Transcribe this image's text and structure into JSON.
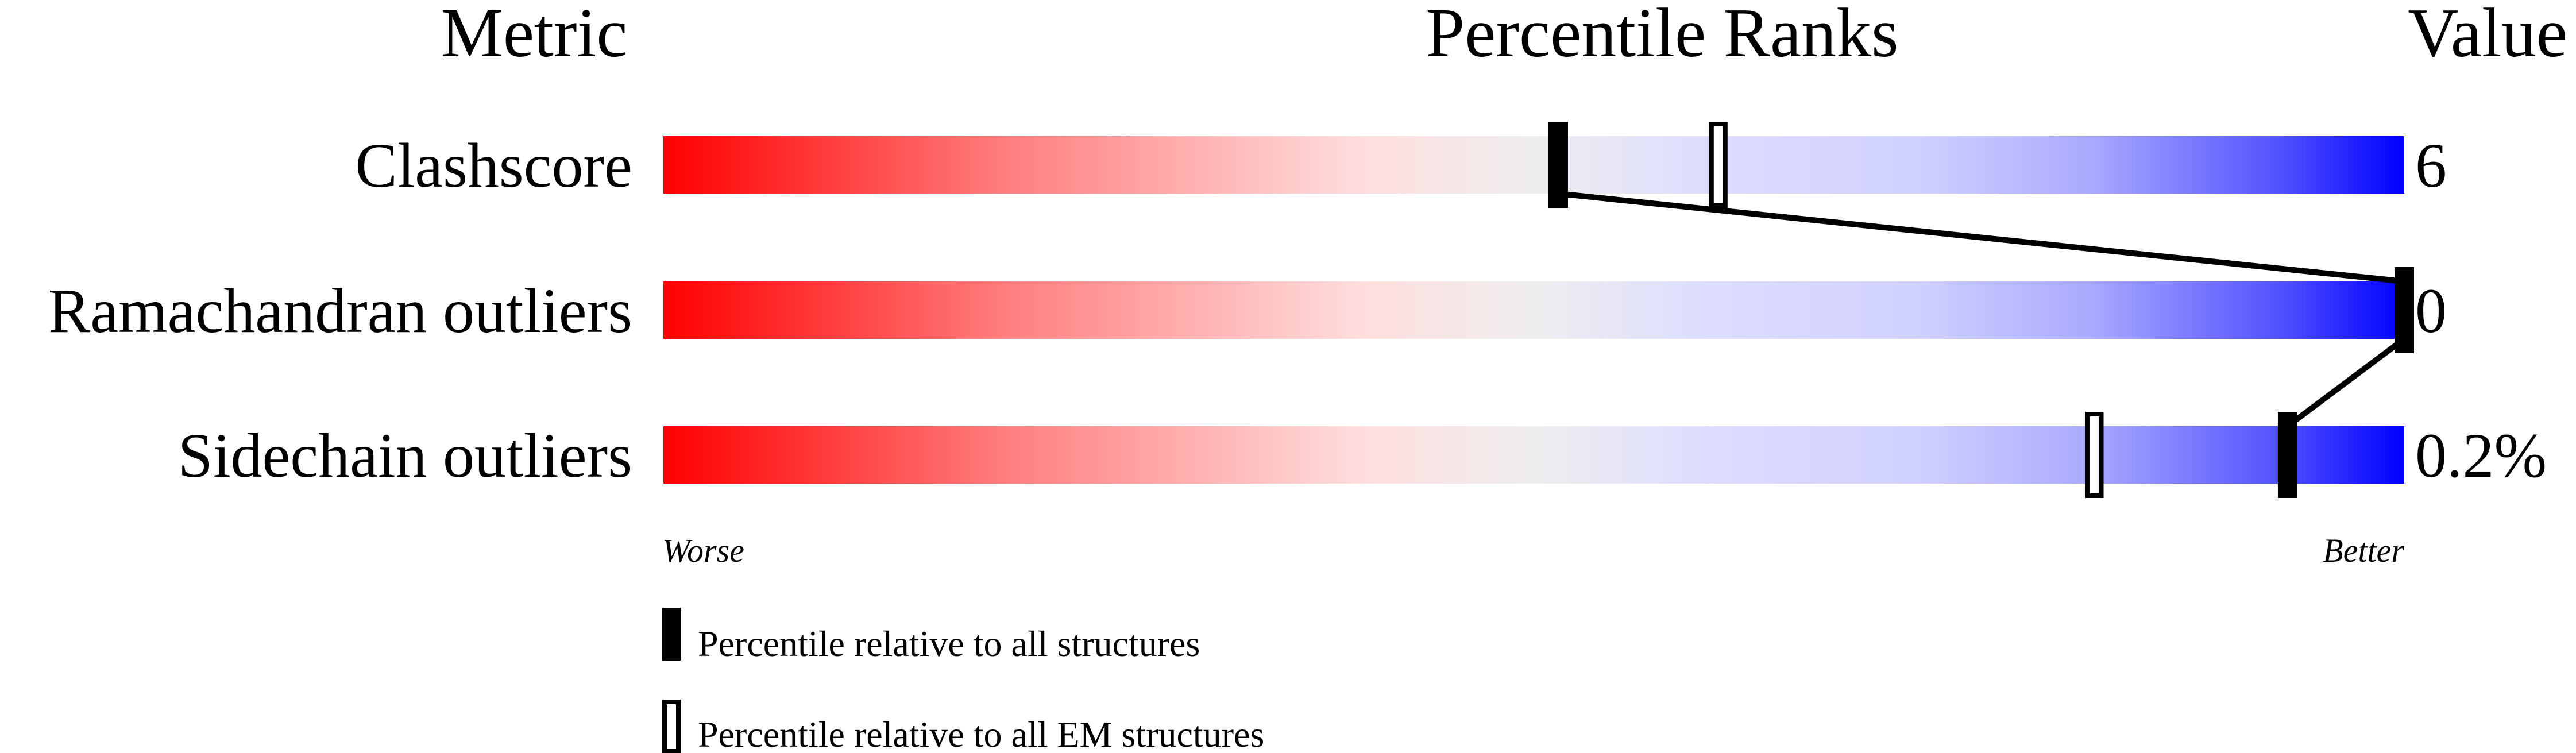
{
  "chart_data": {
    "type": "percentile-slider",
    "headers": {
      "metric": "Metric",
      "ranks": "Percentile Ranks",
      "value": "Value"
    },
    "xlim": [
      0,
      100
    ],
    "metrics": [
      {
        "name": "Clashscore",
        "value": "6",
        "percentile_all": 51.4,
        "percentile_em": 60.6
      },
      {
        "name": "Ramachandran outliers",
        "value": "0",
        "percentile_all": 100,
        "percentile_em": null
      },
      {
        "name": "Sidechain outliers",
        "value": "0.2%",
        "percentile_all": 93.3,
        "percentile_em": 82.2
      }
    ],
    "axis_labels": {
      "worse": "Worse",
      "better": "Better"
    },
    "legend": [
      {
        "marker": "filled",
        "label": "Percentile relative to all structures"
      },
      {
        "marker": "hollow",
        "label": "Percentile relative to all EM structures"
      }
    ],
    "colors": {
      "worse": "#ff0000",
      "neutral": "#eeeeee",
      "better": "#0000ff",
      "marker": "#000000"
    }
  }
}
